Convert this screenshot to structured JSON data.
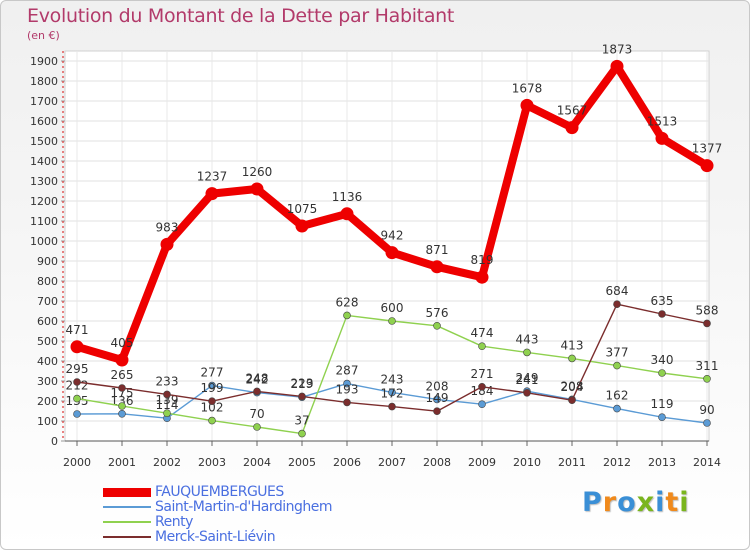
{
  "header": {
    "title": "Evolution du Montant de la Dette par Habitant",
    "unit": "(en €)"
  },
  "logo": {
    "text": "Proxiti",
    "colors": [
      "#3a8fd6",
      "#f08a1c",
      "#3a8fd6",
      "#7ab51d",
      "#3a8fd6",
      "#f08a1c",
      "#7ab51d"
    ]
  },
  "chart_data": {
    "type": "line",
    "categories": [
      "2000",
      "2001",
      "2002",
      "2003",
      "2004",
      "2005",
      "2006",
      "2007",
      "2008",
      "2009",
      "2010",
      "2011",
      "2012",
      "2013",
      "2014"
    ],
    "ylim": [
      0,
      1950
    ],
    "yticks": [
      0,
      100,
      200,
      300,
      400,
      500,
      600,
      700,
      800,
      900,
      1000,
      1100,
      1200,
      1300,
      1400,
      1500,
      1600,
      1700,
      1800,
      1900
    ],
    "grid": true,
    "legend_position": "bottom-left",
    "series": [
      {
        "name": "FAUQUEMBERGUES",
        "color": "#ee0000",
        "values": [
          471,
          405,
          983,
          1237,
          1260,
          1075,
          1136,
          942,
          871,
          819,
          1678,
          1567,
          1873,
          1513,
          1377
        ],
        "labels": [
          "471",
          "405",
          "983",
          "1237",
          "1260",
          "1075",
          "1136",
          "942",
          "871",
          "819",
          "1678",
          "1567",
          "1873",
          "1513",
          "1377"
        ]
      },
      {
        "name": "Saint-Martin-d'Hardinghem",
        "color": "#5b9bd5",
        "values": [
          135,
          136,
          114,
          277,
          242,
          219,
          287,
          243,
          208,
          184,
          249,
          208,
          162,
          119,
          90
        ],
        "labels": [
          "135",
          "136",
          "114",
          "277",
          "242",
          "219",
          "287",
          "243",
          "208",
          "184",
          "249",
          "208",
          "162",
          "119",
          "90"
        ]
      },
      {
        "name": "Renty",
        "color": "#8fd14f",
        "values": [
          212,
          175,
          139,
          102,
          70,
          37,
          628,
          600,
          576,
          474,
          443,
          413,
          377,
          340,
          311
        ],
        "labels": [
          "212",
          "175",
          "139",
          "102",
          "70",
          "37",
          "628",
          "600",
          "576",
          "474",
          "443",
          "413",
          "377",
          "340",
          "311"
        ]
      },
      {
        "name": "Merck-Saint-Liévin",
        "color": "#7b2d2d",
        "values": [
          295,
          265,
          233,
          199,
          248,
          223,
          193,
          172,
          149,
          271,
          241,
          204,
          684,
          635,
          588
        ],
        "labels": [
          "295",
          "265",
          "233",
          "199",
          "248",
          "223",
          "193",
          "172",
          "149",
          "271",
          "241",
          "204",
          "684",
          "635",
          "588"
        ]
      }
    ]
  }
}
